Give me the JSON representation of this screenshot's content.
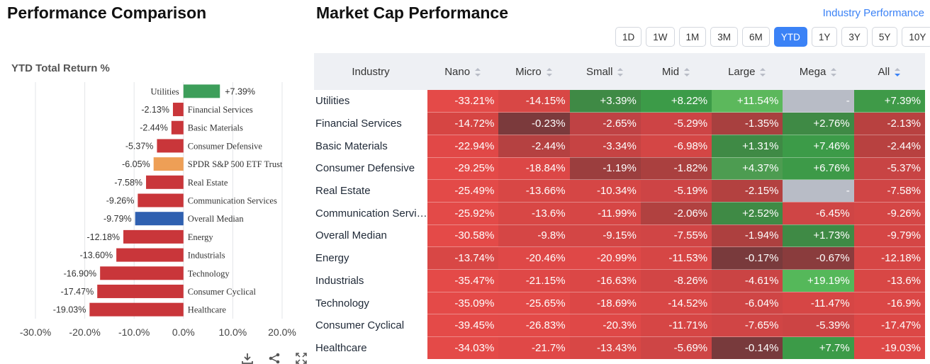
{
  "left_panel": {
    "title": "Performance Comparison",
    "chart_subtitle": "YTD Total Return %",
    "tools": [
      {
        "name": "download-icon"
      },
      {
        "name": "share-icon"
      },
      {
        "name": "fullscreen-icon"
      }
    ]
  },
  "chart_data": {
    "type": "bar",
    "orientation": "horizontal",
    "title": "YTD Total Return %",
    "xlim": [
      -30,
      20
    ],
    "xticks": [
      "-30.0%",
      "-20.0%",
      "-10.0%",
      "0.0%",
      "10.0%",
      "20.0%"
    ],
    "xtick_values": [
      -30,
      -20,
      -10,
      0,
      10,
      20
    ],
    "grid": true,
    "categories": [
      "Utilities",
      "Financial Services",
      "Basic Materials",
      "Consumer Defensive",
      "SPDR S&P 500 ETF Trust",
      "Real Estate",
      "Communication Services",
      "Overall Median",
      "Energy",
      "Industrials",
      "Technology",
      "Consumer Cyclical",
      "Healthcare"
    ],
    "values": [
      7.39,
      -2.13,
      -2.44,
      -5.37,
      -6.05,
      -7.58,
      -9.26,
      -9.79,
      -12.18,
      -13.6,
      -16.9,
      -17.47,
      -19.03
    ],
    "value_labels": [
      "+7.39%",
      "-2.13%",
      "-2.44%",
      "-5.37%",
      "-6.05%",
      "-7.58%",
      "-9.26%",
      "-9.79%",
      "-12.18%",
      "-13.60%",
      "-16.90%",
      "-17.47%",
      "-19.03%"
    ],
    "colors": [
      "#3d9e5a",
      "#c9363a",
      "#c9363a",
      "#c9363a",
      "#ee9f56",
      "#c9363a",
      "#c9363a",
      "#2f60b0",
      "#c9363a",
      "#c9363a",
      "#c9363a",
      "#c9363a",
      "#c9363a"
    ]
  },
  "right_panel": {
    "title": "Market Cap Performance",
    "link": "Industry Performance",
    "periods": [
      "1D",
      "1W",
      "1M",
      "3M",
      "6M",
      "YTD",
      "1Y",
      "3Y",
      "5Y",
      "10Y"
    ],
    "active_period": "YTD",
    "columns": [
      "Industry",
      "Nano",
      "Micro",
      "Small",
      "Mid",
      "Large",
      "Mega",
      "All"
    ],
    "rows": [
      {
        "industry": "Utilities",
        "values": [
          "-33.21%",
          "-14.15%",
          "+3.39%",
          "+8.22%",
          "+11.54%",
          "-",
          "+7.39%"
        ],
        "colors": [
          "#e44a48",
          "#d84745",
          "#3f8a45",
          "#3c9b48",
          "#5cb85c",
          "#b8bcc6",
          "#3f9a48"
        ]
      },
      {
        "industry": "Financial Services",
        "values": [
          "-14.72%",
          "-0.23%",
          "-2.65%",
          "-5.29%",
          "-1.35%",
          "+2.76%",
          "-2.13%"
        ],
        "colors": [
          "#d64543",
          "#7b3a3c",
          "#bf4244",
          "#cd4445",
          "#a8403f",
          "#3f8a45",
          "#b84140"
        ]
      },
      {
        "industry": "Basic Materials",
        "values": [
          "-22.94%",
          "-2.44%",
          "-3.34%",
          "-6.98%",
          "+1.31%",
          "+7.46%",
          "-2.44%"
        ],
        "colors": [
          "#e14847",
          "#b54141",
          "#c64343",
          "#d44645",
          "#3f8a45",
          "#3c9b48",
          "#b84140"
        ]
      },
      {
        "industry": "Consumer Defensive",
        "values": [
          "-29.25%",
          "-18.84%",
          "-1.19%",
          "-1.82%",
          "+4.37%",
          "+6.76%",
          "-5.37%"
        ],
        "colors": [
          "#e44a48",
          "#dc4746",
          "#9b3e3e",
          "#aa403f",
          "#4d9c51",
          "#3d9a48",
          "#c84444"
        ]
      },
      {
        "industry": "Real Estate",
        "values": [
          "-25.49%",
          "-13.66%",
          "-10.34%",
          "-5.19%",
          "-2.15%",
          "-",
          "-7.58%"
        ],
        "colors": [
          "#e34a48",
          "#d84745",
          "#d54645",
          "#cd4445",
          "#b34140",
          "#b8bcc6",
          "#d04545"
        ]
      },
      {
        "industry": "Communication Services",
        "values": [
          "-25.92%",
          "-13.6%",
          "-11.99%",
          "-2.06%",
          "+2.52%",
          "-6.45%",
          "-9.26%"
        ],
        "colors": [
          "#e34a48",
          "#d84745",
          "#d64645",
          "#b14140",
          "#3f8a45",
          "#cf4545",
          "#d44645"
        ]
      },
      {
        "industry": "Overall Median",
        "values": [
          "-30.58%",
          "-9.8%",
          "-9.15%",
          "-7.55%",
          "-1.94%",
          "+1.73%",
          "-9.79%"
        ],
        "colors": [
          "#e44a48",
          "#d54645",
          "#d34645",
          "#d04545",
          "#ad403f",
          "#3f8a45",
          "#d54645"
        ]
      },
      {
        "industry": "Energy",
        "values": [
          "-13.74%",
          "-20.46%",
          "-20.99%",
          "-11.53%",
          "-0.17%",
          "-0.67%",
          "-12.18%"
        ],
        "colors": [
          "#d84745",
          "#df4847",
          "#df4847",
          "#d64645",
          "#793a3c",
          "#8a3c3d",
          "#d64645"
        ]
      },
      {
        "industry": "Industrials",
        "values": [
          "-35.47%",
          "-21.15%",
          "-16.63%",
          "-8.26%",
          "-4.61%",
          "+19.19%",
          "-13.6%"
        ],
        "colors": [
          "#e44a48",
          "#df4847",
          "#db4746",
          "#d24545",
          "#ca4444",
          "#55b85a",
          "#d84745"
        ]
      },
      {
        "industry": "Technology",
        "values": [
          "-35.09%",
          "-25.65%",
          "-18.69%",
          "-14.52%",
          "-6.04%",
          "-11.47%",
          "-16.9%"
        ],
        "colors": [
          "#e44a48",
          "#e34a48",
          "#dc4746",
          "#d94746",
          "#cf4545",
          "#d64645",
          "#db4746"
        ]
      },
      {
        "industry": "Consumer Cyclical",
        "values": [
          "-39.45%",
          "-26.83%",
          "-20.3%",
          "-11.71%",
          "-7.65%",
          "-5.39%",
          "-17.47%"
        ],
        "colors": [
          "#e44a48",
          "#e34a48",
          "#df4847",
          "#d64645",
          "#d04545",
          "#cc4444",
          "#dc4746"
        ]
      },
      {
        "industry": "Healthcare",
        "values": [
          "-34.03%",
          "-21.7%",
          "-13.43%",
          "-5.69%",
          "-0.14%",
          "+7.7%",
          "-19.03%"
        ],
        "colors": [
          "#e44a48",
          "#e04847",
          "#d84745",
          "#ce4545",
          "#783a3c",
          "#3c9b48",
          "#de4847"
        ]
      }
    ]
  }
}
